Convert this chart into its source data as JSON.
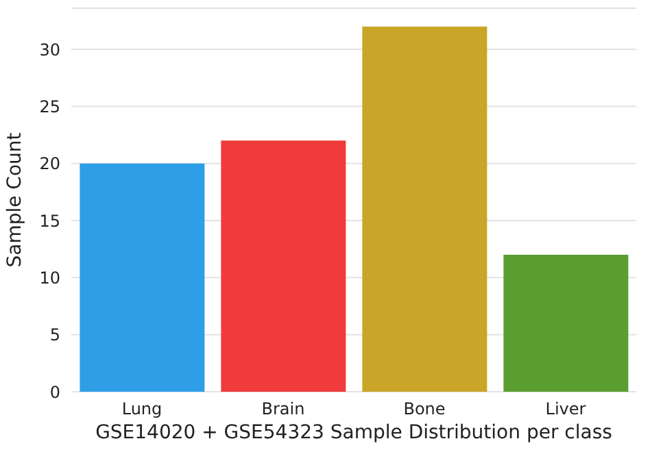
{
  "chart_data": {
    "type": "bar",
    "xlabel": "GSE14020 + GSE54323 Sample Distribution per class",
    "ylabel": "Sample Count",
    "categories": [
      "Lung",
      "Brain",
      "Bone",
      "Liver"
    ],
    "values": [
      20,
      22,
      32,
      12
    ],
    "colors": [
      "#2e9fe6",
      "#ef3b3b",
      "#c9a628",
      "#5a9e32"
    ],
    "ylim": [
      0,
      33.6
    ],
    "yticks": [
      0,
      5,
      10,
      15,
      20,
      25,
      30
    ],
    "grid": "y"
  }
}
